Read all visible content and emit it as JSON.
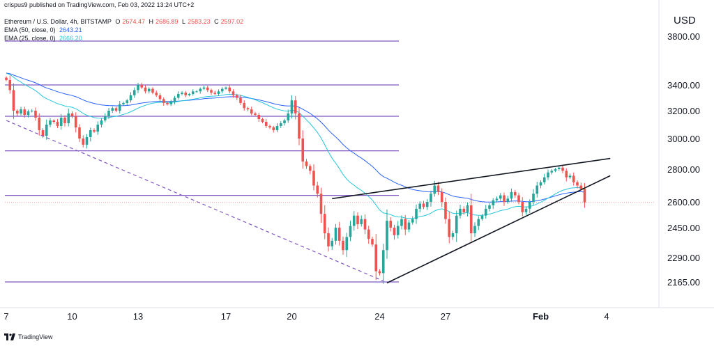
{
  "header": {
    "credit": "crispus9 published on TradingView.com, Feb 03, 2022 13:24 UTC+2",
    "symbol": "Ethereum / U.S. Dollar, 4h, BITSTAMP",
    "ohlc": {
      "o_label": "O",
      "o": "2674.47",
      "h_label": "H",
      "h": "2686.89",
      "l_label": "L",
      "l": "2583.23",
      "c_label": "C",
      "c": "2597.02"
    },
    "ema50_label": "EMA (50, close, 0)",
    "ema50_value": "2643.21",
    "ema25_label": "EMA (25, close, 0)",
    "ema25_value": "2666.20"
  },
  "currency": "USD",
  "brand": "TradingView",
  "colors": {
    "up": "#26a69a",
    "down": "#ef5350",
    "level": "#7e57c2",
    "ema50": "#2962ff",
    "ema25": "#26c6da",
    "trend": "#131722",
    "price_line": "#ef9a9a",
    "axis_text": "#131722"
  },
  "chart_data": {
    "type": "candlestick",
    "title": "Ethereum / U.S. Dollar, 4h, BITSTAMP",
    "y_axis": {
      "position": "right",
      "ticks": [
        3800,
        3400,
        3200,
        3000,
        2800,
        2600,
        2450,
        2290,
        2165
      ],
      "tick_labels": [
        "3800.00",
        "3400.00",
        "3200.00",
        "3000.00",
        "2800.00",
        "2600.00",
        "2450.00",
        "2290.00",
        "2165.00"
      ]
    },
    "x_axis": {
      "ticks": [
        {
          "label": "7",
          "index": 0,
          "bold": false
        },
        {
          "label": "10",
          "index": 18,
          "bold": false
        },
        {
          "label": "13",
          "index": 36,
          "bold": false
        },
        {
          "label": "17",
          "index": 60,
          "bold": false
        },
        {
          "label": "20",
          "index": 78,
          "bold": false
        },
        {
          "label": "24",
          "index": 102,
          "bold": false
        },
        {
          "label": "27",
          "index": 120,
          "bold": false
        },
        {
          "label": "Feb",
          "index": 146,
          "bold": true
        },
        {
          "label": "4",
          "index": 164,
          "bold": false
        }
      ]
    },
    "closes": [
      3440,
      3360,
      3200,
      3180,
      3210,
      3170,
      3195,
      3200,
      3150,
      3060,
      3020,
      3100,
      3130,
      3120,
      3090,
      3150,
      3110,
      3180,
      3160,
      3080,
      3000,
      2960,
      3010,
      3060,
      3050,
      3100,
      3130,
      3160,
      3200,
      3220,
      3200,
      3250,
      3260,
      3280,
      3320,
      3360,
      3400,
      3380,
      3350,
      3370,
      3340,
      3320,
      3290,
      3260,
      3250,
      3270,
      3300,
      3330,
      3340,
      3320,
      3330,
      3350,
      3350,
      3370,
      3380,
      3360,
      3340,
      3330,
      3350,
      3370,
      3380,
      3350,
      3320,
      3300,
      3260,
      3220,
      3210,
      3180,
      3170,
      3140,
      3120,
      3090,
      3080,
      3060,
      3090,
      3110,
      3130,
      3180,
      3280,
      3180,
      3000,
      2850,
      2820,
      2790,
      2700,
      2650,
      2530,
      2420,
      2350,
      2380,
      2450,
      2380,
      2330,
      2400,
      2460,
      2520,
      2470,
      2500,
      2440,
      2390,
      2360,
      2220,
      2210,
      2330,
      2490,
      2450,
      2410,
      2460,
      2500,
      2440,
      2480,
      2500,
      2560,
      2590,
      2570,
      2600,
      2650,
      2700,
      2660,
      2600,
      2500,
      2400,
      2420,
      2520,
      2560,
      2540,
      2580,
      2420,
      2460,
      2500,
      2520,
      2560,
      2580,
      2610,
      2620,
      2640,
      2600,
      2620,
      2660,
      2640,
      2600,
      2540,
      2560,
      2600,
      2650,
      2700,
      2720,
      2750,
      2780,
      2790,
      2800,
      2810,
      2790,
      2750,
      2760,
      2720,
      2700,
      2680,
      2597
    ],
    "levels": [
      3760,
      3400,
      3160,
      2920,
      2640,
      2165
    ],
    "ema50_end": 2643.21,
    "ema25_end": 2666.2,
    "last_price": 2597.02,
    "trendlines": [
      {
        "name": "descending-dashed",
        "style": "dashed",
        "from": {
          "index": 0,
          "price": 3130
        },
        "to": {
          "index": 103,
          "price": 2170
        }
      },
      {
        "name": "wedge-upper",
        "style": "solid",
        "from": {
          "index": 89,
          "price": 2620
        },
        "to": {
          "index": 165,
          "price": 2870
        }
      },
      {
        "name": "wedge-lower",
        "style": "solid",
        "from": {
          "index": 104,
          "price": 2160
        },
        "to": {
          "index": 165,
          "price": 2760
        }
      }
    ]
  }
}
